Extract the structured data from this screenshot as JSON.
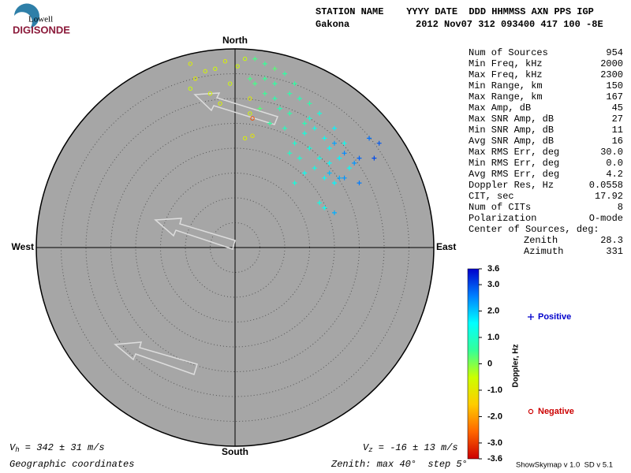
{
  "logo": {
    "top": "Lowell",
    "bottom": "DIGISONDE"
  },
  "header": {
    "labels": "STATION NAME    YYYY DATE  DDD HHMMSS AXN PPS IGP",
    "station": "Gakona",
    "values": "2012 Nov07 312 093400 417 100 -8E"
  },
  "stats": [
    {
      "label": "Num of Sources",
      "value": "954"
    },
    {
      "label": "Min Freq, kHz",
      "value": "2000"
    },
    {
      "label": "Max Freq, kHz",
      "value": "2300"
    },
    {
      "label": "Min Range, km",
      "value": "150"
    },
    {
      "label": "Max Range, km",
      "value": "167"
    },
    {
      "label": "Max Amp, dB",
      "value": "45"
    },
    {
      "label": "Max SNR Amp, dB",
      "value": "27"
    },
    {
      "label": "Min SNR Amp, dB",
      "value": "11"
    },
    {
      "label": "Avg SNR Amp, dB",
      "value": "16"
    },
    {
      "label": "Max RMS Err, deg",
      "value": "30.0"
    },
    {
      "label": "Min RMS Err, deg",
      "value": "0.0"
    },
    {
      "label": "Avg RMS Err, deg",
      "value": "4.2"
    },
    {
      "label": "Doppler Res, Hz",
      "value": "0.0558"
    },
    {
      "label": "CIT, sec",
      "value": "17.92"
    },
    {
      "label": "Num of CITs",
      "value": "8"
    },
    {
      "label": "Polarization",
      "value": "O-mode"
    }
  ],
  "center": {
    "title": "Center of Sources, deg:",
    "rows": [
      {
        "label": "Zenith",
        "value": "28.3"
      },
      {
        "label": "Azimuth",
        "value": "331"
      }
    ]
  },
  "chart_data": {
    "type": "skymap",
    "directions": {
      "north": "North",
      "south": "South",
      "east": "East",
      "west": "West"
    },
    "zenith_max": 40,
    "zenith_step": 5,
    "points": {
      "x": [
        -9,
        -6,
        -8,
        -4,
        -2,
        2,
        -5,
        3,
        2,
        3.5,
        -1,
        3,
        -9,
        0.5,
        3.5,
        -3,
        4,
        6,
        8,
        10,
        4,
        6,
        8,
        12,
        9,
        11,
        5,
        7,
        13,
        15,
        10,
        14,
        3,
        6,
        8,
        11,
        14,
        16,
        18,
        12,
        15,
        19,
        17,
        13,
        20,
        22,
        16,
        19,
        11,
        21,
        15,
        17,
        14,
        18,
        12,
        17,
        18,
        20,
        23,
        20,
        22,
        25,
        24,
        21,
        25,
        28,
        19,
        22,
        20,
        29,
        27
      ],
      "y": [
        37,
        35.5,
        34,
        36,
        37.5,
        38,
        31,
        30,
        22,
        22.5,
        33,
        27,
        32,
        36.5,
        26,
        29,
        38,
        37,
        36,
        35,
        33,
        31,
        30,
        33,
        28,
        27,
        28,
        25,
        30,
        29,
        24,
        25,
        34,
        34,
        33,
        31,
        23,
        24,
        22,
        21,
        20,
        20,
        18,
        18,
        24,
        21,
        16,
        17,
        19,
        18,
        26,
        27,
        15,
        14,
        13,
        9,
        8,
        13,
        16,
        21,
        19,
        18,
        17,
        14,
        13,
        18,
        15,
        14,
        7,
        21,
        22
      ],
      "doppler": [
        -0.8,
        -0.7,
        -0.9,
        -0.6,
        -0.8,
        -0.5,
        -0.7,
        -0.9,
        -0.8,
        -1.0,
        -0.6,
        -0.7,
        -0.5,
        -0.6,
        -2.8,
        -0.8,
        0.4,
        0.5,
        0.3,
        0.6,
        0.4,
        0.5,
        0.7,
        0.6,
        0.8,
        0.7,
        0.3,
        0.6,
        0.8,
        0.7,
        0.9,
        0.8,
        0.4,
        0.5,
        0.6,
        0.7,
        1.2,
        1.3,
        1.4,
        1.1,
        1.2,
        1.5,
        1.3,
        1.1,
        1.6,
        1.4,
        1.3,
        1.5,
        1.0,
        1.6,
        1.1,
        1.2,
        1.4,
        1.5,
        1.2,
        1.3,
        1.4,
        1.6,
        1.5,
        2.3,
        2.5,
        2.8,
        2.4,
        2.2,
        2.6,
        3.0,
        2.1,
        2.4,
        2.2,
        2.9,
        2.7
      ]
    },
    "colorbar": {
      "title": "Doppler, Hz",
      "lim": [
        -3.6,
        3.6
      ],
      "ticks": [
        {
          "value": 3.6,
          "label": "3.6"
        },
        {
          "value": 3,
          "label": "3.0"
        },
        {
          "value": 2,
          "label": "2.0"
        },
        {
          "value": 1,
          "label": "1.0"
        },
        0,
        {
          "value": -1,
          "label": "-1.0"
        },
        {
          "value": -2,
          "label": "-2.0"
        },
        {
          "value": -3,
          "label": "-3.0"
        },
        {
          "value": -3.6,
          "label": "-3.6"
        }
      ],
      "colors": [
        "#cc0000",
        "#ff6600",
        "#ffcc00",
        "#ccff00",
        "#33ff99",
        "#00ffff",
        "#0080ff",
        "#0000cc"
      ]
    },
    "legend": {
      "positive": "Positive",
      "negative": "Negative",
      "positive_color": "#0000cc",
      "negative_color": "#cc0000"
    },
    "vh": {
      "symbol": "V",
      "sub": "h",
      "text": " = 342 ± 31 m/s"
    },
    "vz": {
      "symbol": "V",
      "sub": "z",
      "text": " = -16 ± 13 m/s"
    },
    "coordinates": "Geographic coordinates",
    "zenith_note": "Zenith: max 40°  step 5°",
    "version": "ShowSkymap v 1.0  SD v 5.1"
  }
}
